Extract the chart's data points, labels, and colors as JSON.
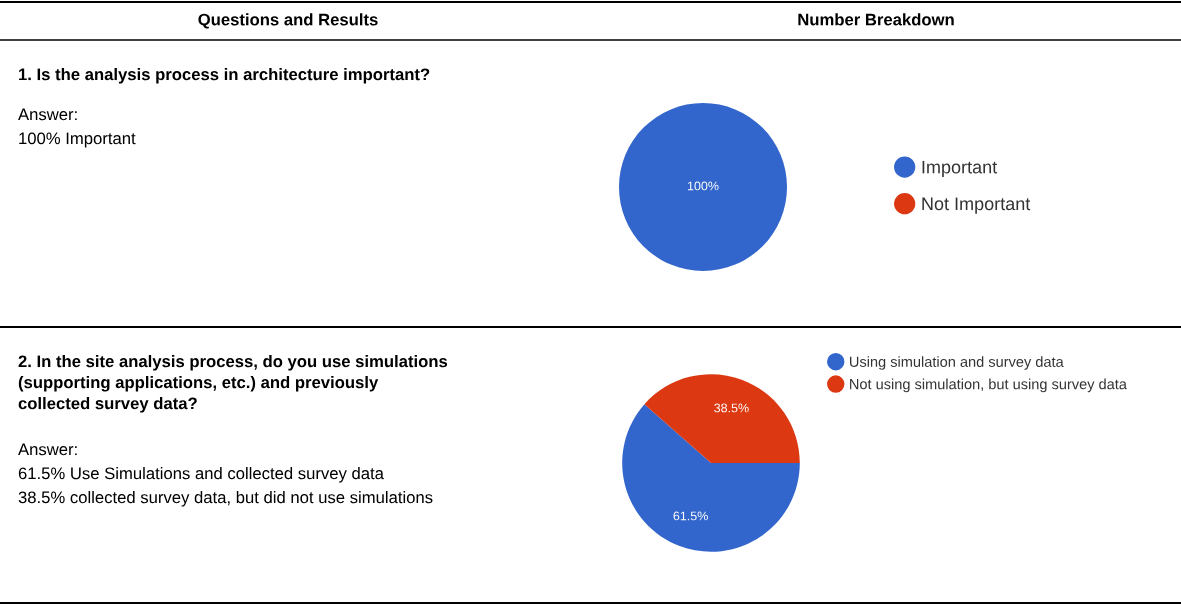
{
  "chart_data": [
    {
      "type": "other",
      "annotations": [
        "Questions and Results",
        "Number Breakdown"
      ]
    },
    {
      "type": "other",
      "title": "1. Is the analysis process in architecture important?",
      "annotations": [
        "Answer:",
        "100% Important"
      ]
    },
    {
      "type": "pie",
      "categories": [
        "Important",
        "Not Important"
      ],
      "values": [
        100,
        0
      ],
      "colors": [
        "#3366cc",
        "#dc3912"
      ],
      "value_labels": [
        "100%",
        null
      ],
      "legend": "right"
    },
    {
      "type": "other",
      "title": "2. In the site analysis process, do you use simulations\n(supporting applications, etc.) and previously\ncollected survey data?",
      "annotations": [
        "Answer:",
        "61.5% Use Simulations and collected survey data",
        "38.5% collected survey data, but did not use simulations"
      ]
    },
    {
      "type": "pie",
      "categories": [
        "Using simulation and survey data",
        "Not using simulation, but using survey data"
      ],
      "values": [
        61.5,
        38.5
      ],
      "colors": [
        "#3366cc",
        "#dc3912"
      ],
      "value_labels": [
        "61.5%",
        "38.5%"
      ],
      "legend": "top right"
    }
  ]
}
